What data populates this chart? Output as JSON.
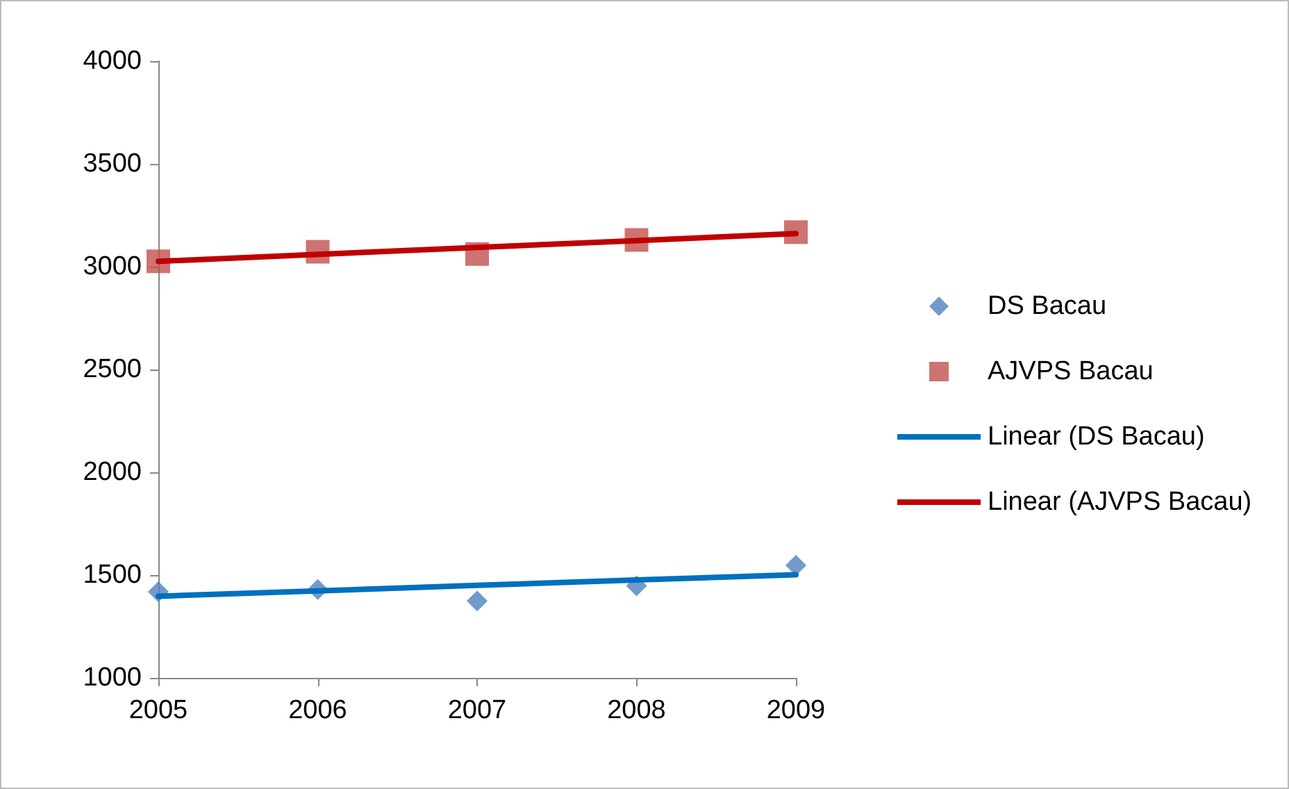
{
  "chart_data": {
    "type": "scatter",
    "categories": [
      "2005",
      "2006",
      "2007",
      "2008",
      "2009"
    ],
    "series": [
      {
        "name": "DS Bacau",
        "marker": "diamond",
        "color": "#4f81bd",
        "values": [
          1419,
          1430,
          1374,
          1448,
          1547
        ]
      },
      {
        "name": "AJVPS Bacau",
        "marker": "square",
        "color": "#c0504d",
        "values": [
          3026,
          3073,
          3062,
          3130,
          3168
        ]
      },
      {
        "name": "Linear (DS Bacau)",
        "type": "line",
        "marker": "none",
        "color": "#0070c0",
        "values": [
          1397,
          1423,
          1450,
          1476,
          1502
        ]
      },
      {
        "name": "Linear (AJVPS Bacau)",
        "type": "line",
        "marker": "none",
        "color": "#c00000",
        "values": [
          3026,
          3060,
          3094,
          3127,
          3161
        ]
      }
    ],
    "ylim": [
      1000,
      4000
    ],
    "yticks": [
      1000,
      1500,
      2000,
      2500,
      3000,
      3500,
      4000
    ],
    "grid": false,
    "legend": "right"
  }
}
